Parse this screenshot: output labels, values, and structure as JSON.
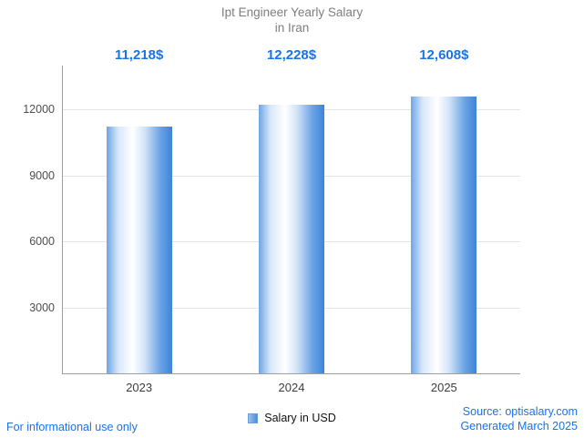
{
  "title": {
    "line1": "Ipt Engineer Yearly Salary",
    "line2": "in Iran"
  },
  "chart_data": {
    "type": "bar",
    "title": "Ipt Engineer Yearly Salary in Iran",
    "categories": [
      "2023",
      "2024",
      "2025"
    ],
    "values": [
      11218,
      12228,
      12608
    ],
    "value_labels": [
      "11,218$",
      "12,228$",
      "12,608$"
    ],
    "xlabel": "",
    "ylabel": "",
    "ylim": [
      0,
      14000
    ],
    "yticks": [
      3000,
      6000,
      9000,
      12000
    ],
    "grid": true,
    "legend_position": "bottom",
    "series_name": "Salary in USD"
  },
  "legend": {
    "label": "Salary in USD"
  },
  "footer": {
    "disclaimer": "For informational use only",
    "source": "Source: optisalary.com",
    "generated": "Generated March 2025"
  },
  "colors": {
    "accent_text": "#1a73e8",
    "title_text": "#7e7e7e",
    "bar_edge_blue": "#3c84d8",
    "bar_mid_white": "#ffffff",
    "gridline": "#e4e4e4"
  }
}
